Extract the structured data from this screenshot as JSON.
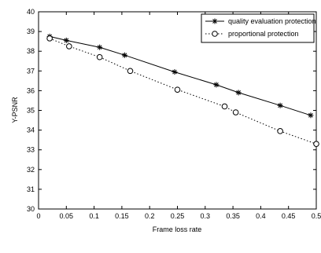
{
  "chart_data": {
    "type": "line",
    "xlabel": "Frame loss rate",
    "ylabel": "Y-PSNR",
    "xlim": [
      0,
      0.5
    ],
    "ylim": [
      30,
      40
    ],
    "x_ticks": [
      "0",
      "0.05",
      "0.1",
      "0.15",
      "0.2",
      "0.25",
      "0.3",
      "0.35",
      "0.4",
      "0.45",
      "0.5"
    ],
    "y_ticks": [
      "30",
      "31",
      "32",
      "33",
      "34",
      "35",
      "36",
      "37",
      "38",
      "39",
      "40"
    ],
    "grid": false,
    "legend_position": "top-right",
    "series": [
      {
        "name": "quality evaluation protection",
        "line_style": "solid",
        "marker": "star",
        "color": "#000000",
        "x": [
          0.02,
          0.05,
          0.11,
          0.155,
          0.245,
          0.32,
          0.36,
          0.435,
          0.49
        ],
        "y": [
          38.75,
          38.55,
          38.2,
          37.8,
          36.95,
          36.3,
          35.9,
          35.25,
          34.75
        ]
      },
      {
        "name": "proportional protection",
        "line_style": "dotted",
        "marker": "circle",
        "color": "#000000",
        "x": [
          0.02,
          0.055,
          0.11,
          0.165,
          0.25,
          0.335,
          0.355,
          0.435,
          0.5
        ],
        "y": [
          38.65,
          38.25,
          37.7,
          37.0,
          36.05,
          35.2,
          34.9,
          33.95,
          33.3
        ]
      }
    ]
  }
}
